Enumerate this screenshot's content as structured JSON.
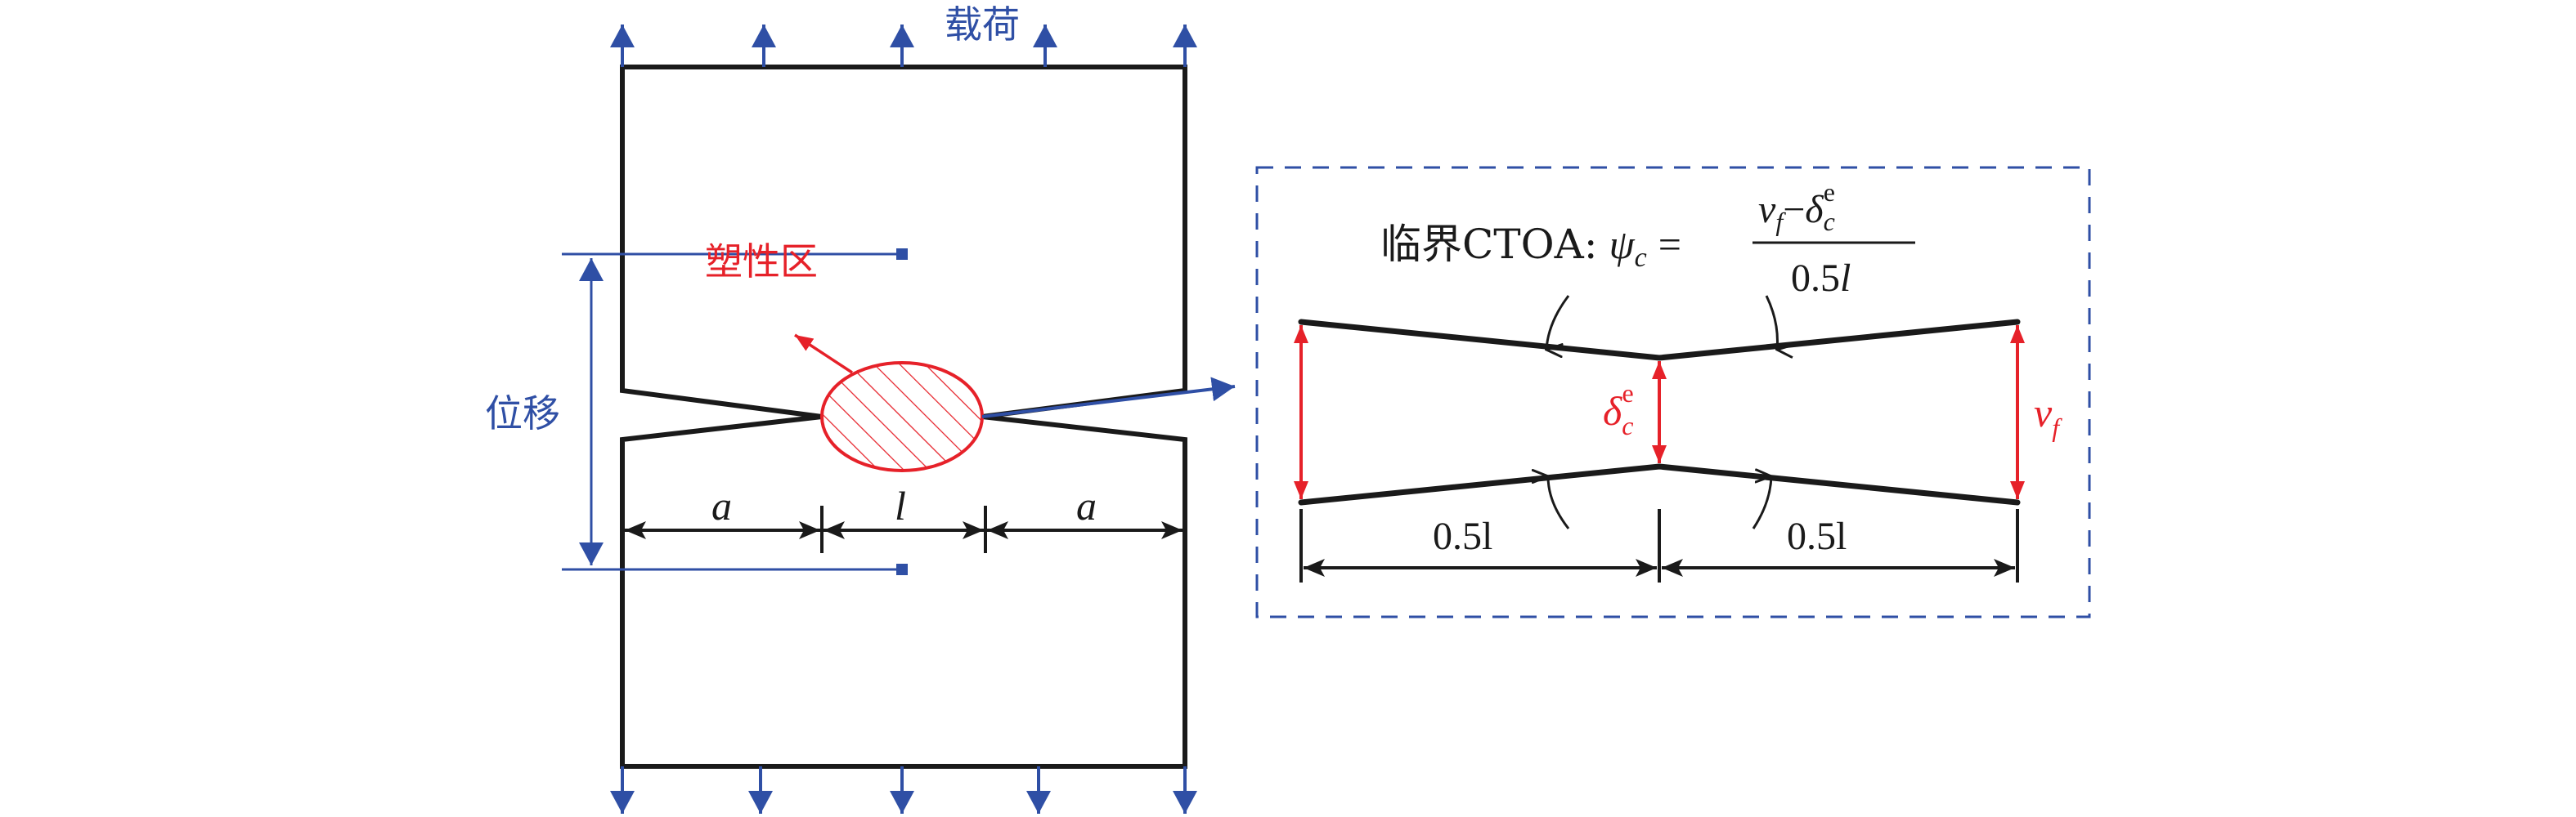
{
  "colors": {
    "load": "#2f4fa5",
    "plastic": "#e62129",
    "structure": "#1a1a1a"
  },
  "labels": {
    "load": "载荷",
    "displacement": "位移",
    "plastic_zone": "塑性区",
    "dim_a_left": "a",
    "dim_l": "l",
    "dim_a_right": "a",
    "delta_c": "δ",
    "delta_sub": "c",
    "delta_sup": "e",
    "v": "v",
    "v_sub": "f",
    "half_l_left": "0.5l",
    "half_l_right": "0.5l"
  },
  "formula": {
    "prefix": "临界CTOA:",
    "psi": "ψ",
    "psi_sub": "c",
    "equals": "=",
    "num_v": "v",
    "num_v_sub": "f",
    "minus": "−",
    "num_delta": "δ",
    "num_delta_sub": "c",
    "num_delta_sup": "e",
    "den_num": "0.5",
    "den_l": "l"
  }
}
